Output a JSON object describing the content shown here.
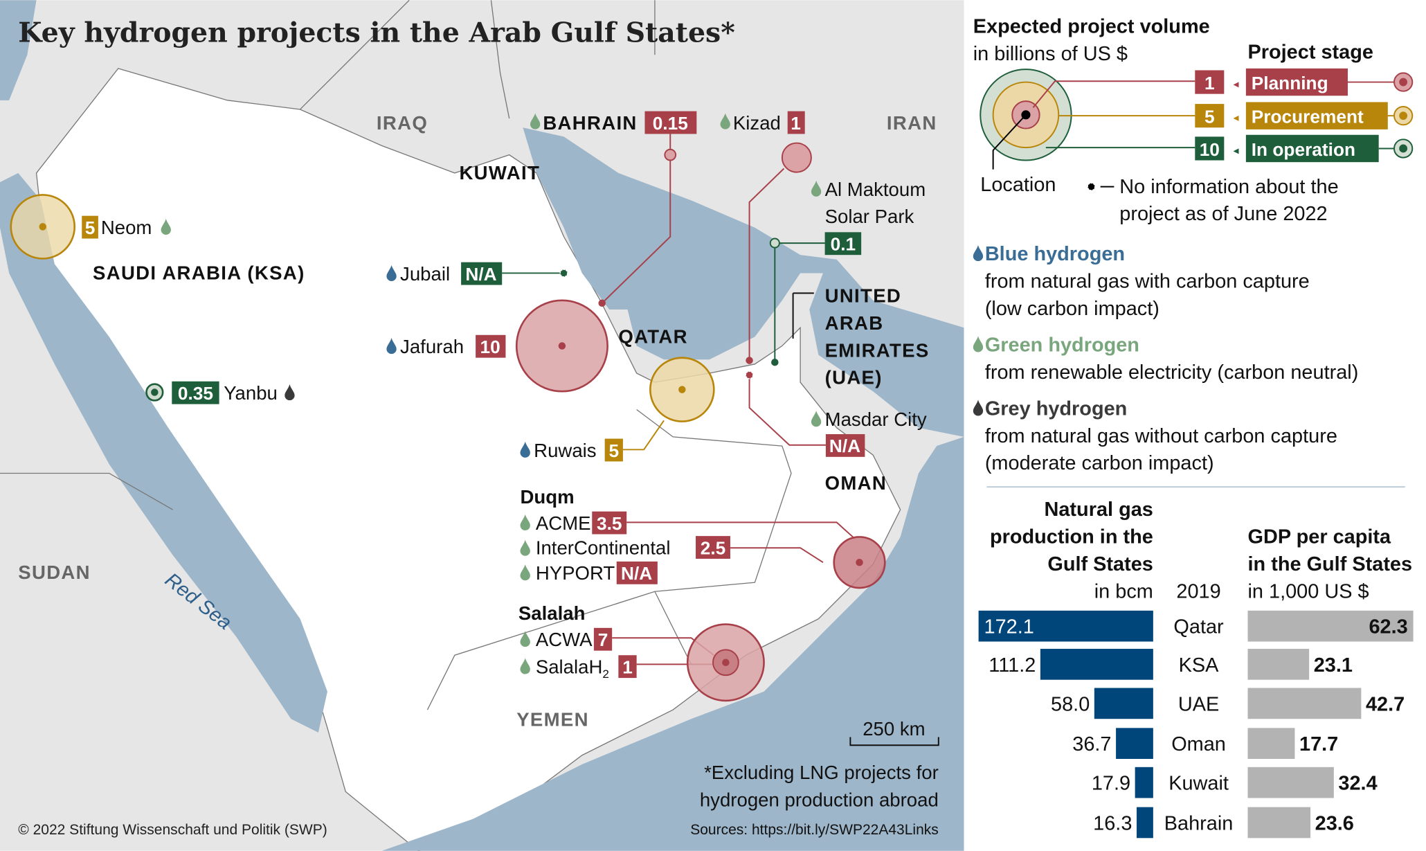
{
  "title": "Key hydrogen projects in the Arab Gulf States*",
  "colors": {
    "planning": "#a8404a",
    "procurement": "#b8860b",
    "operation": "#1e5e3a",
    "blue_h2": "#3a6d96",
    "green_h2": "#7aa67e",
    "grey_h2": "#3a3a3a",
    "sea": "#9db6ca",
    "land": "#e6e6e6",
    "ksa": "#ffffff",
    "gas_bar": "#00467a",
    "gdp_bar": "#b3b3b3"
  },
  "map": {
    "countries": {
      "iraq": "IRAQ",
      "iran": "IRAN",
      "kuwait": "KUWAIT",
      "ksa": "SAUDI ARABIA (KSA)",
      "qatar": "QATAR",
      "uae": [
        "UNITED",
        "ARAB",
        "EMIRATES",
        "(UAE)"
      ],
      "oman": "OMAN",
      "yemen": "YEMEN",
      "sudan": "SUDAN"
    },
    "red_sea": "Red Sea",
    "projects": {
      "neom": {
        "name": "Neom",
        "value": "5",
        "stage": "procurement",
        "type": "green"
      },
      "jubail": {
        "name": "Jubail",
        "value": "N/A",
        "stage": "operation",
        "type": "blue"
      },
      "jafurah": {
        "name": "Jafurah",
        "value": "10",
        "stage": "planning",
        "type": "blue"
      },
      "yanbu": {
        "name": "Yanbu",
        "value": "0.35",
        "stage": "operation",
        "type": "grey"
      },
      "bahrain": {
        "name": "BAHRAIN",
        "value": "0.15",
        "stage": "planning",
        "type": "green"
      },
      "kizad": {
        "name": "Kizad",
        "value": "1",
        "stage": "planning",
        "type": "green"
      },
      "maktoum": {
        "name": [
          "Al Maktoum",
          "Solar Park"
        ],
        "value": "0.1",
        "stage": "operation",
        "type": "green"
      },
      "ruwais": {
        "name": "Ruwais",
        "value": "5",
        "stage": "procurement",
        "type": "blue"
      },
      "masdar": {
        "name": "Masdar City",
        "value": "N/A",
        "stage": "planning",
        "type": "green"
      },
      "duqm": {
        "label": "Duqm",
        "items": [
          {
            "name": "ACME",
            "value": "3.5"
          },
          {
            "name": "InterContinental",
            "value": "2.5"
          },
          {
            "name": "HYPORT",
            "value": "N/A"
          }
        ]
      },
      "salalah": {
        "label": "Salalah",
        "items": [
          {
            "name": "ACWA",
            "value": "7"
          },
          {
            "name": "SalalaH",
            "sub": "2",
            "value": "1"
          }
        ]
      }
    },
    "scale": "250 km",
    "footnote": [
      "*Excluding LNG projects for",
      "hydrogen production abroad"
    ],
    "sources": "Sources: https://bit.ly/SWP22A43Links",
    "copyright": "© 2022  Stiftung Wissenschaft und Politik (SWP)"
  },
  "legend": {
    "volume_title": "Expected project volume",
    "volume_unit": "in billions of US $",
    "volumes": [
      "1",
      "5",
      "10"
    ],
    "stage_title": "Project stage",
    "stages": [
      "Planning",
      "Procurement",
      "In operation"
    ],
    "location": "Location",
    "no_info": [
      "No information about the",
      "project as of June 2022"
    ],
    "types": [
      {
        "name": "Blue hydrogen",
        "desc": [
          "from natural gas with carbon capture",
          "(low carbon impact)"
        ]
      },
      {
        "name": "Green hydrogen",
        "desc": [
          "from renewable electricity (carbon neutral)"
        ]
      },
      {
        "name": "Grey hydrogen",
        "desc": [
          "from natural gas without carbon capture",
          "(moderate carbon impact)"
        ]
      }
    ]
  },
  "chart_data": [
    {
      "type": "bar",
      "title": "Natural gas production in the Gulf States",
      "unit": "in bcm",
      "year": "2019",
      "categories": [
        "Qatar",
        "KSA",
        "UAE",
        "Oman",
        "Kuwait",
        "Bahrain"
      ],
      "values": [
        172.1,
        111.2,
        58.0,
        36.7,
        17.9,
        16.3
      ],
      "labels": [
        "172.1",
        "111.2",
        "58.0",
        "36.7",
        "17.9",
        "16.3"
      ]
    },
    {
      "type": "bar",
      "title": "GDP per capita in the Gulf States",
      "unit": "in 1,000 US $",
      "categories": [
        "Qatar",
        "KSA",
        "UAE",
        "Oman",
        "Kuwait",
        "Bahrain"
      ],
      "values": [
        62.3,
        23.1,
        42.7,
        17.7,
        32.4,
        23.6
      ],
      "labels": [
        "62.3",
        "23.1",
        "42.7",
        "17.7",
        "32.4",
        "23.6"
      ]
    }
  ],
  "charts_text": {
    "gas_title": [
      "Natural gas",
      "production in the",
      "Gulf States"
    ],
    "gdp_title": [
      "GDP per capita",
      "in the Gulf States"
    ]
  }
}
